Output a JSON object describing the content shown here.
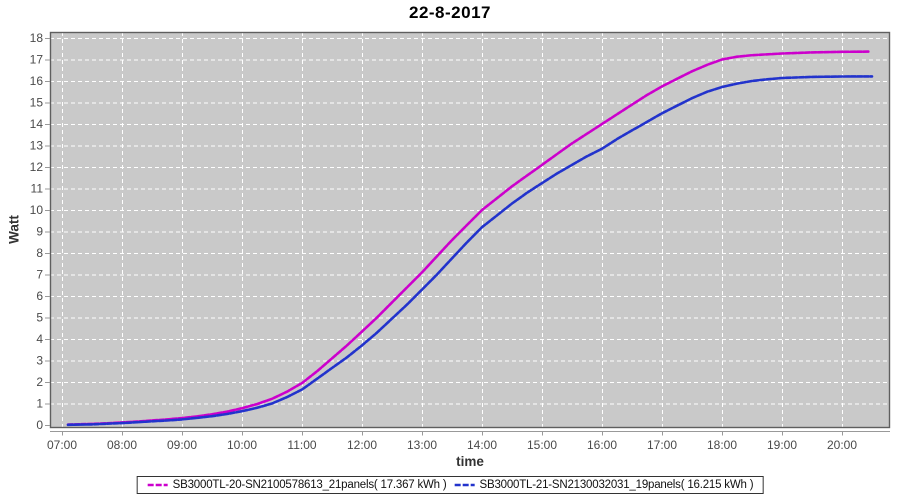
{
  "window": {
    "title": "22-8-2017"
  },
  "chart_data": {
    "type": "line",
    "title": "22-8-2017",
    "xlabel": "time",
    "ylabel": "Watt",
    "x_unit": "hour_of_day",
    "x_tick_labels": [
      "07:00",
      "08:00",
      "09:00",
      "10:00",
      "11:00",
      "12:00",
      "13:00",
      "14:00",
      "15:00",
      "16:00",
      "17:00",
      "18:00",
      "19:00",
      "20:00"
    ],
    "x_tick_hours": [
      7,
      8,
      9,
      10,
      11,
      12,
      13,
      14,
      15,
      16,
      17,
      18,
      19,
      20
    ],
    "y_tick_labels": [
      "0",
      "1",
      "2",
      "3",
      "4",
      "5",
      "6",
      "7",
      "8",
      "9",
      "10",
      "11",
      "12",
      "13",
      "14",
      "15",
      "16",
      "17",
      "18"
    ],
    "y_ticks": [
      0,
      1,
      2,
      3,
      4,
      5,
      6,
      7,
      8,
      9,
      10,
      11,
      12,
      13,
      14,
      15,
      16,
      17,
      18
    ],
    "xlim_hours": [
      6.8,
      20.8
    ],
    "ylim": [
      0,
      18.3
    ],
    "grid": {
      "shown": true,
      "style": "dashed",
      "color": "#ffffff",
      "plot_background": "#c9c9c9"
    },
    "legend_position": "bottom-center",
    "series": [
      {
        "name": "SB3000TL-20-SN2100578613_21panels( 17.367 kWh )",
        "color": "#cc00cc",
        "total_kwh": 17.367,
        "points": [
          [
            7.1,
            0.02
          ],
          [
            7.5,
            0.05
          ],
          [
            7.75,
            0.08
          ],
          [
            8,
            0.12
          ],
          [
            8.25,
            0.16
          ],
          [
            8.5,
            0.21
          ],
          [
            8.75,
            0.26
          ],
          [
            9,
            0.32
          ],
          [
            9.25,
            0.4
          ],
          [
            9.5,
            0.5
          ],
          [
            9.75,
            0.62
          ],
          [
            10,
            0.78
          ],
          [
            10.25,
            0.97
          ],
          [
            10.5,
            1.22
          ],
          [
            10.75,
            1.55
          ],
          [
            11,
            1.95
          ],
          [
            11.25,
            2.5
          ],
          [
            11.5,
            3.1
          ],
          [
            11.75,
            3.7
          ],
          [
            12,
            4.35
          ],
          [
            12.25,
            5.0
          ],
          [
            12.5,
            5.7
          ],
          [
            12.75,
            6.4
          ],
          [
            13,
            7.1
          ],
          [
            13.25,
            7.85
          ],
          [
            13.5,
            8.6
          ],
          [
            13.75,
            9.3
          ],
          [
            14,
            10.0
          ],
          [
            14.25,
            10.55
          ],
          [
            14.5,
            11.1
          ],
          [
            14.75,
            11.6
          ],
          [
            15,
            12.1
          ],
          [
            15.25,
            12.6
          ],
          [
            15.5,
            13.1
          ],
          [
            15.75,
            13.55
          ],
          [
            16,
            14.0
          ],
          [
            16.25,
            14.45
          ],
          [
            16.5,
            14.9
          ],
          [
            16.75,
            15.35
          ],
          [
            17,
            15.75
          ],
          [
            17.25,
            16.1
          ],
          [
            17.5,
            16.45
          ],
          [
            17.75,
            16.75
          ],
          [
            18,
            17.0
          ],
          [
            18.25,
            17.13
          ],
          [
            18.5,
            17.2
          ],
          [
            19,
            17.28
          ],
          [
            19.5,
            17.33
          ],
          [
            20,
            17.36
          ],
          [
            20.45,
            17.367
          ]
        ]
      },
      {
        "name": "SB3000TL-21-SN2130032031_19panels( 16.215 kWh )",
        "color": "#2233cc",
        "total_kwh": 16.215,
        "points": [
          [
            7.1,
            0.01
          ],
          [
            7.5,
            0.03
          ],
          [
            7.75,
            0.06
          ],
          [
            8,
            0.09
          ],
          [
            8.25,
            0.13
          ],
          [
            8.5,
            0.17
          ],
          [
            8.75,
            0.21
          ],
          [
            9,
            0.26
          ],
          [
            9.25,
            0.33
          ],
          [
            9.5,
            0.41
          ],
          [
            9.75,
            0.51
          ],
          [
            10,
            0.64
          ],
          [
            10.25,
            0.8
          ],
          [
            10.5,
            1.0
          ],
          [
            10.75,
            1.3
          ],
          [
            11,
            1.65
          ],
          [
            11.25,
            2.15
          ],
          [
            11.5,
            2.65
          ],
          [
            11.75,
            3.15
          ],
          [
            12,
            3.7
          ],
          [
            12.25,
            4.3
          ],
          [
            12.5,
            4.95
          ],
          [
            12.75,
            5.6
          ],
          [
            13,
            6.3
          ],
          [
            13.25,
            7.0
          ],
          [
            13.5,
            7.75
          ],
          [
            13.75,
            8.5
          ],
          [
            14,
            9.2
          ],
          [
            14.25,
            9.75
          ],
          [
            14.5,
            10.3
          ],
          [
            14.75,
            10.8
          ],
          [
            15,
            11.25
          ],
          [
            15.25,
            11.7
          ],
          [
            15.5,
            12.1
          ],
          [
            15.75,
            12.5
          ],
          [
            16,
            12.85
          ],
          [
            16.25,
            13.3
          ],
          [
            16.5,
            13.7
          ],
          [
            16.75,
            14.1
          ],
          [
            17,
            14.5
          ],
          [
            17.25,
            14.85
          ],
          [
            17.5,
            15.2
          ],
          [
            17.75,
            15.5
          ],
          [
            18,
            15.72
          ],
          [
            18.25,
            15.88
          ],
          [
            18.5,
            16.0
          ],
          [
            18.75,
            16.08
          ],
          [
            19,
            16.14
          ],
          [
            19.5,
            16.19
          ],
          [
            20,
            16.21
          ],
          [
            20.5,
            16.215
          ]
        ]
      }
    ]
  },
  "colors": {
    "series1": "#cc00cc",
    "series2": "#2233cc",
    "plot_bg": "#c9c9c9",
    "grid": "#ffffff",
    "border": "#5f5f5f",
    "tick": "#999999",
    "tick_label": "#4a4a4a"
  }
}
